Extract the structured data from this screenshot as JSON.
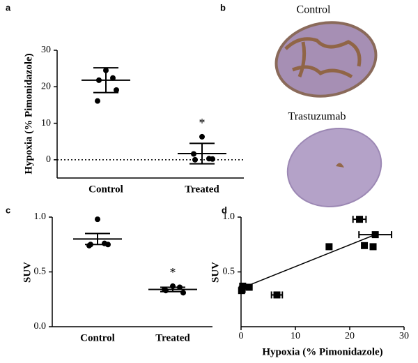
{
  "panel_b": {
    "label": "b",
    "images": [
      {
        "caption": "Control"
      },
      {
        "caption": "Trastuzumab"
      }
    ]
  },
  "chart_data": [
    {
      "type": "dot",
      "panel_label": "a",
      "ylabel": "Hypoxia (% Pimonidazole)",
      "categories": [
        "Control",
        "Treated"
      ],
      "points": [
        [
          24.5,
          22.4,
          21.8,
          19.1,
          16.1
        ],
        [
          6.3,
          0.3,
          0.0,
          0.2,
          1.6
        ]
      ],
      "means": [
        21.8,
        1.7
      ],
      "errors": [
        3.4,
        2.8
      ],
      "annotation": "*",
      "reference_line": 0,
      "ylim": [
        -5,
        30
      ],
      "yticks": [
        0,
        10,
        20,
        30
      ],
      "color": "#000000"
    },
    {
      "type": "dot",
      "panel_label": "c",
      "ylabel": "SUV",
      "categories": [
        "Control",
        "Treated"
      ],
      "points": [
        [
          0.98,
          0.76,
          0.75,
          0.75,
          0.74
        ],
        [
          0.37,
          0.36,
          0.33,
          0.31,
          0.34
        ]
      ],
      "means": [
        0.8,
        0.34
      ],
      "errors": [
        0.05,
        0.02
      ],
      "annotation": "*",
      "ylim": [
        0,
        1
      ],
      "yticks": [
        {
          "value": 0,
          "label": "0.0"
        },
        {
          "value": 0.5,
          "label": "0.5"
        },
        {
          "value": 1,
          "label": "1.0"
        }
      ],
      "color": "#000000"
    },
    {
      "type": "scatter",
      "panel_label": "d",
      "xlabel": "Hypoxia (% Pimonidazole)",
      "ylabel": "SUV",
      "x": [
        21.8,
        24.7,
        16.2,
        22.7,
        24.3,
        6.6,
        0.3,
        0.2,
        1.5,
        0.1
      ],
      "y": [
        0.98,
        0.84,
        0.73,
        0.74,
        0.73,
        0.29,
        0.37,
        0.34,
        0.36,
        0.33
      ],
      "xerr": [
        1.2,
        3.0,
        null,
        null,
        null,
        1.0,
        null,
        null,
        null,
        null
      ],
      "fit_line": {
        "x": [
          0,
          24.7
        ],
        "y": [
          0.35,
          0.84
        ]
      },
      "xlim": [
        0,
        30
      ],
      "xticks": [
        0,
        10,
        20,
        30
      ],
      "ylim": [
        0,
        1
      ],
      "yticks": [
        {
          "value": 0.5,
          "label": "0.5"
        },
        {
          "value": 1,
          "label": "1.0"
        }
      ],
      "color": "#000000"
    }
  ]
}
